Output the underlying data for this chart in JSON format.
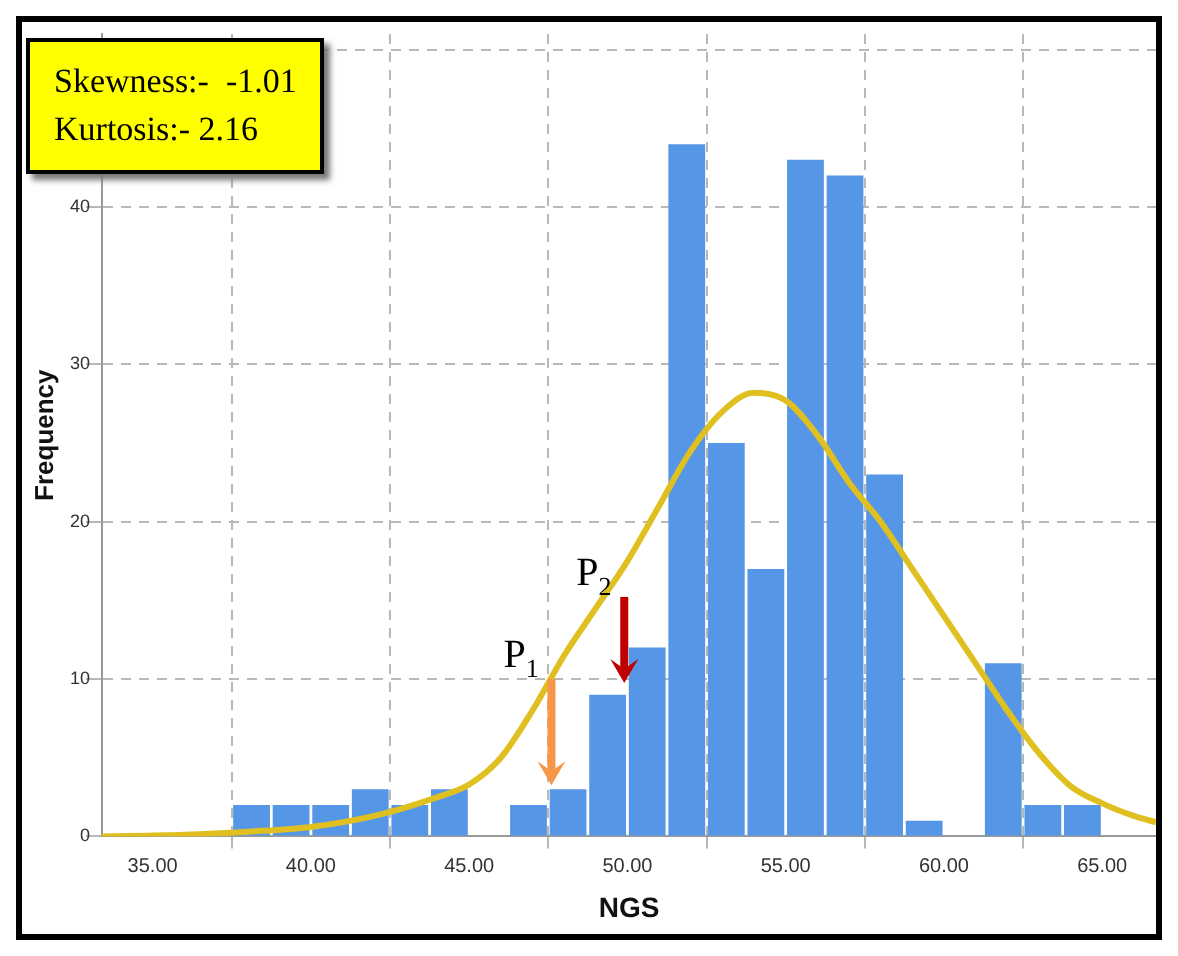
{
  "chart_data": {
    "type": "histogram",
    "xlabel": "NGS",
    "ylabel": "Frequency",
    "bins": [
      37.5,
      38.75,
      40,
      41.25,
      42.5,
      43.75,
      45,
      46.25,
      47.5,
      48.75,
      50,
      51.25,
      52.5,
      53.75,
      55,
      56.25,
      57.5,
      58.75,
      60,
      61.25,
      62.5,
      63.75,
      65
    ],
    "series": [
      {
        "color": "#5596e6",
        "values": [
          2,
          2,
          2,
          3,
          2,
          3,
          0,
          2,
          3,
          9,
          12,
          44,
          25,
          17,
          43,
          42,
          23,
          1,
          0,
          11,
          2,
          2
        ]
      },
      {
        "type": "line",
        "color": "#e0c020",
        "x": [
          33.4,
          36,
          38,
          40,
          42,
          44,
          45,
          46,
          47,
          48,
          49,
          50,
          51,
          52,
          53,
          54,
          55,
          56,
          57,
          58,
          59,
          60,
          61,
          62,
          63,
          64,
          65,
          66,
          66.7
        ],
        "values": [
          0,
          0.1,
          0.3,
          0.6,
          1.3,
          2.5,
          3.3,
          5,
          8,
          11.5,
          14.5,
          17.5,
          21,
          24.5,
          27,
          28.2,
          27.7,
          25.5,
          22.5,
          20,
          17,
          14,
          11,
          8,
          5.3,
          3.2,
          2.1,
          1.3,
          0.9
        ]
      }
    ],
    "marker": "none",
    "xlim": [
      33.4,
      66.7
    ],
    "xticks": [
      {
        "value": 35,
        "label": "35.00"
      },
      {
        "value": 40,
        "label": "40.00"
      },
      {
        "value": 45,
        "label": "45.00"
      },
      {
        "value": 50,
        "label": "50.00"
      },
      {
        "value": 55,
        "label": "55.00"
      },
      {
        "value": 60,
        "label": "60.00"
      },
      {
        "value": 65,
        "label": "65.00"
      }
    ],
    "ylim": [
      0,
      51
    ],
    "yticks": [
      0,
      10,
      20,
      30,
      40,
      {
        "value": 50,
        "label": null
      }
    ],
    "grid": true,
    "annotations": [
      "Skewness:-  -1.01",
      "Kurtosis:- 2.16",
      {
        "text": "P$_{1}$",
        "x": 47.6,
        "y": 3
      },
      {
        "text": "P$_{2}$",
        "x": 49.9,
        "y": 9.5
      }
    ]
  }
}
